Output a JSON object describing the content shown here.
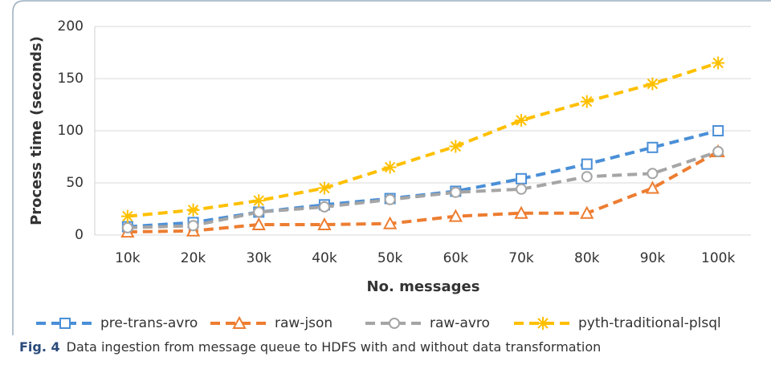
{
  "chart_data": {
    "type": "line",
    "y_label": "Process time (seconds)",
    "x_label": "No. messages",
    "categories": [
      "10k",
      "20k",
      "30k",
      "40k",
      "50k",
      "60k",
      "70k",
      "80k",
      "90k",
      "100k"
    ],
    "series": [
      {
        "name": "pre-trans-avro",
        "color": "#4a8fd8",
        "marker": "square",
        "values": [
          8,
          12,
          22,
          29,
          35,
          42,
          54,
          68,
          84,
          100
        ]
      },
      {
        "name": "raw-json",
        "color": "#ed7d31",
        "marker": "triangle",
        "values": [
          3,
          4,
          10,
          10,
          11,
          18,
          21,
          21,
          45,
          80
        ]
      },
      {
        "name": "raw-avro",
        "color": "#a5a5a5",
        "marker": "circle",
        "values": [
          7,
          9,
          22,
          27,
          34,
          41,
          44,
          56,
          59,
          80
        ]
      },
      {
        "name": "pyth-traditional-plsql",
        "color": "#ffc000",
        "marker": "star",
        "values": [
          18,
          24,
          33,
          45,
          65,
          85,
          110,
          128,
          145,
          165
        ]
      }
    ],
    "ylim": [
      0,
      200
    ],
    "yticks": [
      0,
      50,
      100,
      150,
      200
    ],
    "grid": true,
    "legend": "bottom"
  },
  "caption": {
    "label": "Fig. 4",
    "text": "Data ingestion from message queue to HDFS with and without data transformation"
  }
}
